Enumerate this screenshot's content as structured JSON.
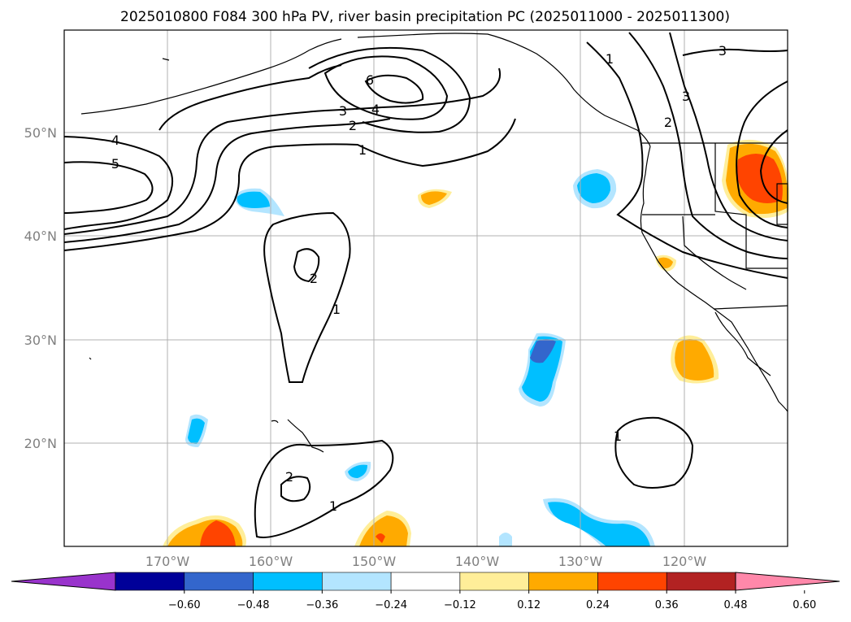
{
  "title": "2025010800 F084 300 hPa PV, river basin precipitation PC (2025011000 - 2025011300)",
  "lat_labels": [
    "50°N",
    "40°N",
    "30°N",
    "20°N"
  ],
  "lon_labels": [
    "170°W",
    "160°W",
    "150°W",
    "140°W",
    "130°W",
    "120°W"
  ],
  "colorbar": {
    "colors": [
      "#9933cc",
      "#000099",
      "#3366cc",
      "#00bfff",
      "#b3e5ff",
      "#ffffff",
      "#ffee99",
      "#ffaa00",
      "#ff4400",
      "#b22222",
      "#ff88aa"
    ],
    "ticks": [
      "−0.60",
      "−0.48",
      "−0.36",
      "−0.24",
      "−0.12",
      "0.12",
      "0.24",
      "0.36",
      "0.48",
      "0.60"
    ]
  },
  "contour_labels": [
    "4",
    "5",
    "3",
    "4",
    "2",
    "1",
    "6",
    "1",
    "2",
    "3",
    "3",
    "2",
    "1",
    "2",
    "1",
    "1"
  ]
}
